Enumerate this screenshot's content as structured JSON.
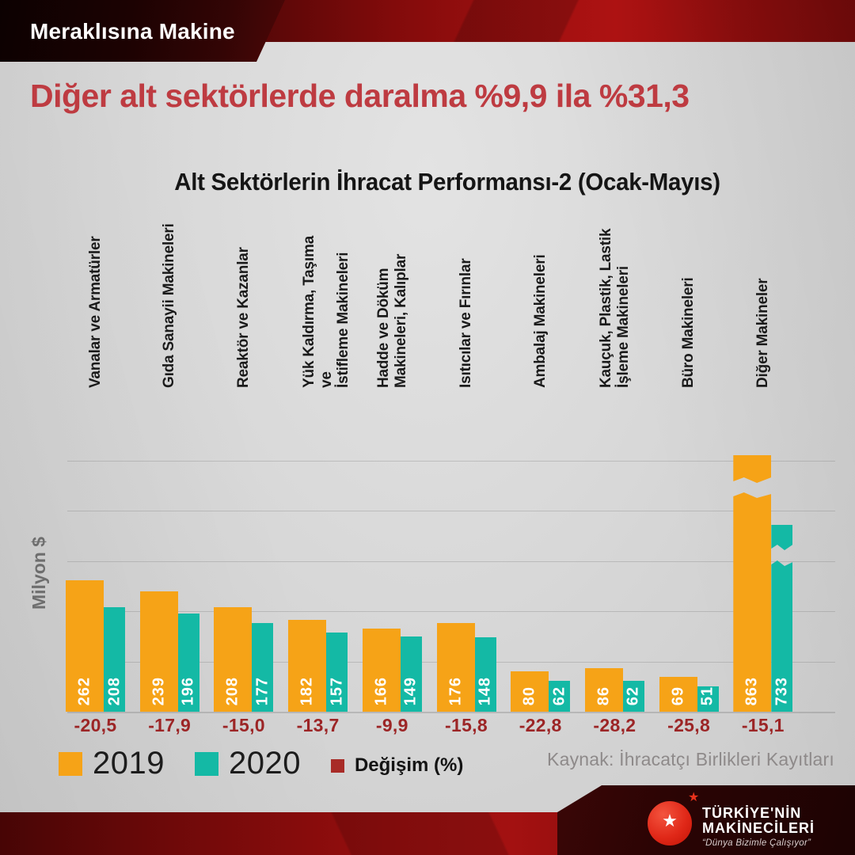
{
  "banner": {
    "tag": "Meraklısına Makine"
  },
  "headline": "Diğer alt sektörlerde daralma %9,9 ila %31,3",
  "chart_data": {
    "type": "bar",
    "title": "Alt Sektörlerin İhracat Performansı-2 (Ocak-Mayıs)",
    "ylabel": "Milyon $",
    "categories": [
      "Vanalar ve Armatürler",
      "Gıda Sanayii Makineleri",
      "Reaktör ve Kazanlar",
      "Yük Kaldırma, Taşıma ve\nİstifleme Makineleri",
      "Hadde ve Döküm\nMakineleri, Kalıplar",
      "Isıtıcılar ve Fırınlar",
      "Ambalaj Makineleri",
      "Kauçuk, Plastik, Lastik\nİşleme Makineleri",
      "Büro Makineleri",
      "Diğer Makineler"
    ],
    "series": [
      {
        "name": "2019",
        "color": "#F6A317",
        "values": [
          262,
          239,
          208,
          182,
          166,
          176,
          80,
          86,
          69,
          863
        ]
      },
      {
        "name": "2020",
        "color": "#14B9A5",
        "values": [
          208,
          196,
          177,
          157,
          149,
          148,
          62,
          62,
          51,
          733
        ]
      }
    ],
    "change_percent": [
      "-20,5",
      "-17,9",
      "-15,0",
      "-13,7",
      "-9,9",
      "-15,8",
      "-22,8",
      "-28,2",
      "-25,8",
      "-15,1"
    ],
    "change_color": "#9C2526",
    "ylim": [
      0,
      500
    ],
    "gridline_step": 100,
    "grid": true,
    "legend_position": "bottom-left",
    "axis_break_categories": [
      "Diğer Makineler"
    ]
  },
  "legend": [
    {
      "label": "2019",
      "color": "#F6A317"
    },
    {
      "label": "2020",
      "color": "#14B9A5"
    },
    {
      "label": "Değişim (%)",
      "color": "#A82B27"
    }
  ],
  "source": "Kaynak: İhracatçı Birlikleri Kayıtları",
  "logo": {
    "title_line1": "TÜRKİYE'NİN",
    "title_line2": "MAKİNECİLERİ",
    "tagline": "“Dünya Bizimle Çalışıyor”"
  }
}
